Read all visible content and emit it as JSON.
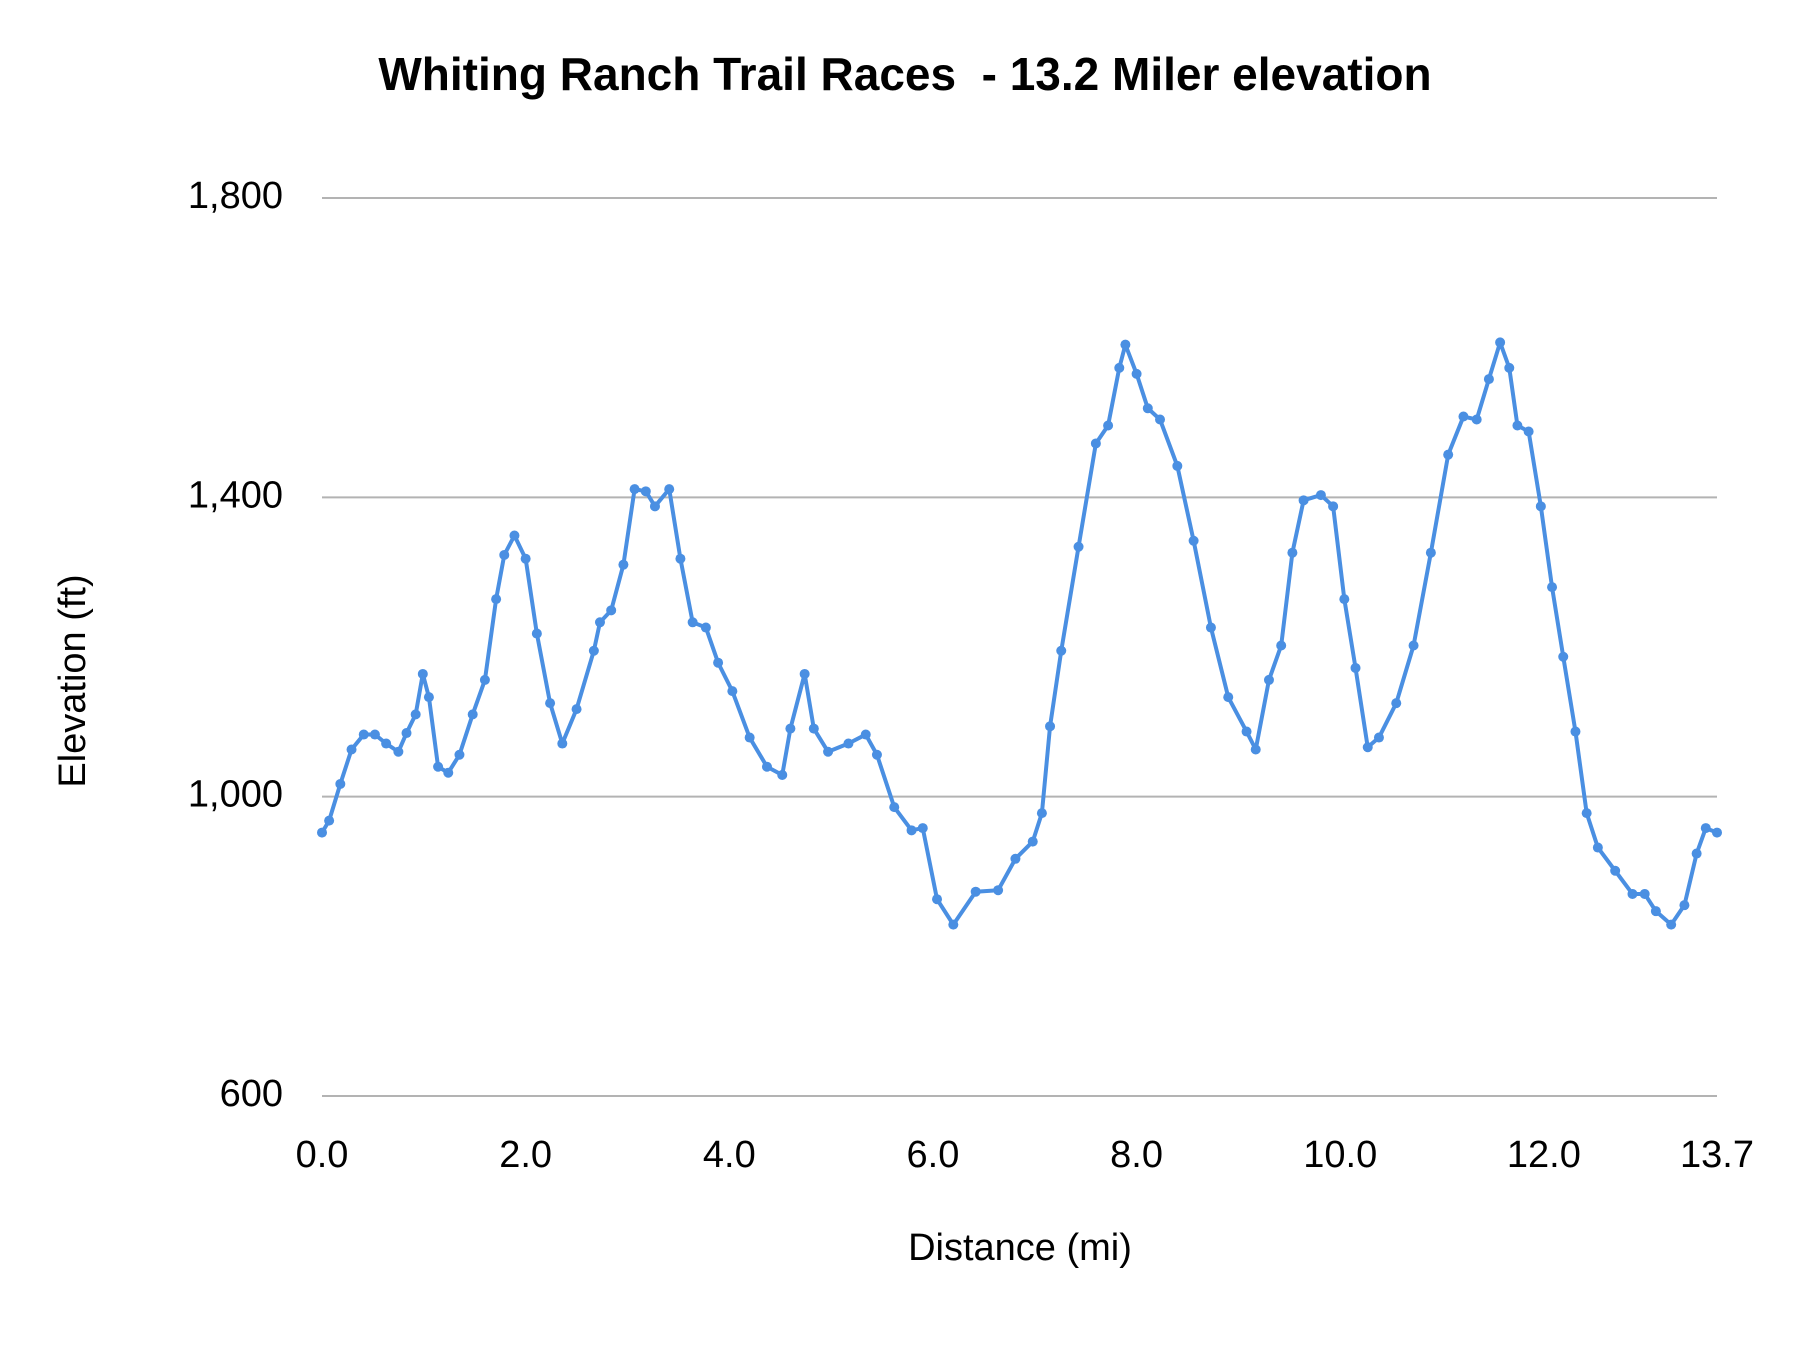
{
  "chart_data": {
    "type": "line",
    "title": "Whiting Ranch Trail Races  - 13.2 Miler elevation",
    "xlabel": "Distance (mi)",
    "ylabel": "Elevation (ft)",
    "x": [
      0,
      0.07,
      0.18,
      0.29,
      0.41,
      0.52,
      0.63,
      0.75,
      0.83,
      0.92,
      0.99,
      1.05,
      1.14,
      1.24,
      1.35,
      1.48,
      1.6,
      1.71,
      1.79,
      1.89,
      2.0,
      2.11,
      2.24,
      2.36,
      2.5,
      2.67,
      2.73,
      2.84,
      2.96,
      3.07,
      3.18,
      3.27,
      3.41,
      3.52,
      3.64,
      3.77,
      3.89,
      4.03,
      4.2,
      4.37,
      4.52,
      4.6,
      4.74,
      4.83,
      4.97,
      5.17,
      5.34,
      5.45,
      5.62,
      5.79,
      5.9,
      6.04,
      6.2,
      6.42,
      6.64,
      6.81,
      6.98,
      7.07,
      7.15,
      7.26,
      7.43,
      7.6,
      7.72,
      7.83,
      7.89,
      8.0,
      8.11,
      8.23,
      8.4,
      8.56,
      8.73,
      8.9,
      9.08,
      9.17,
      9.3,
      9.42,
      9.53,
      9.64,
      9.81,
      9.93,
      10.04,
      10.15,
      10.27,
      10.38,
      10.55,
      10.72,
      10.89,
      11.06,
      11.21,
      11.34,
      11.46,
      11.57,
      11.66,
      11.74,
      11.85,
      11.97,
      12.08,
      12.19,
      12.31,
      12.42,
      12.53,
      12.7,
      12.87,
      12.99,
      13.1,
      13.25,
      13.38,
      13.5,
      13.59,
      13.7
    ],
    "series": [
      {
        "name": "Elevation",
        "color": "#4a8fe2",
        "values": [
          952,
          968,
          1017,
          1063,
          1083,
          1083,
          1071,
          1060,
          1085,
          1110,
          1164,
          1133,
          1040,
          1032,
          1056,
          1110,
          1156,
          1264,
          1323,
          1349,
          1318,
          1218,
          1125,
          1071,
          1117,
          1195,
          1233,
          1249,
          1310,
          1411,
          1408,
          1388,
          1411,
          1318,
          1233,
          1226,
          1179,
          1141,
          1079,
          1040,
          1029,
          1091,
          1164,
          1091,
          1060,
          1071,
          1083,
          1056,
          986,
          955,
          958,
          863,
          829,
          873,
          875,
          917,
          940,
          978,
          1094,
          1195,
          1334,
          1472,
          1496,
          1573,
          1604,
          1565,
          1519,
          1504,
          1442,
          1342,
          1226,
          1133,
          1087,
          1063,
          1156,
          1202,
          1326,
          1396,
          1403,
          1388,
          1264,
          1172,
          1066,
          1079,
          1125,
          1202,
          1326,
          1457,
          1508,
          1504,
          1558,
          1607,
          1573,
          1496,
          1488,
          1388,
          1280,
          1187,
          1087,
          978,
          932,
          901,
          870,
          870,
          847,
          829,
          855,
          924,
          958,
          952
        ]
      }
    ],
    "xlim": [
      0,
      13.7
    ],
    "xticks": [
      {
        "value": 0,
        "label": "0.0"
      },
      {
        "value": 2,
        "label": "2.0"
      },
      {
        "value": 4,
        "label": "4.0"
      },
      {
        "value": 6,
        "label": "6.0"
      },
      {
        "value": 8,
        "label": "8.0"
      },
      {
        "value": 10,
        "label": "10.0"
      },
      {
        "value": 12,
        "label": "12.0"
      },
      13.7
    ],
    "ylim": [
      600,
      1800
    ],
    "yticks": [
      600,
      {
        "value": 1000,
        "label": "1,000"
      },
      {
        "value": 1400,
        "label": "1,400"
      },
      {
        "value": 1800,
        "label": "1,800"
      }
    ],
    "grid": true
  }
}
